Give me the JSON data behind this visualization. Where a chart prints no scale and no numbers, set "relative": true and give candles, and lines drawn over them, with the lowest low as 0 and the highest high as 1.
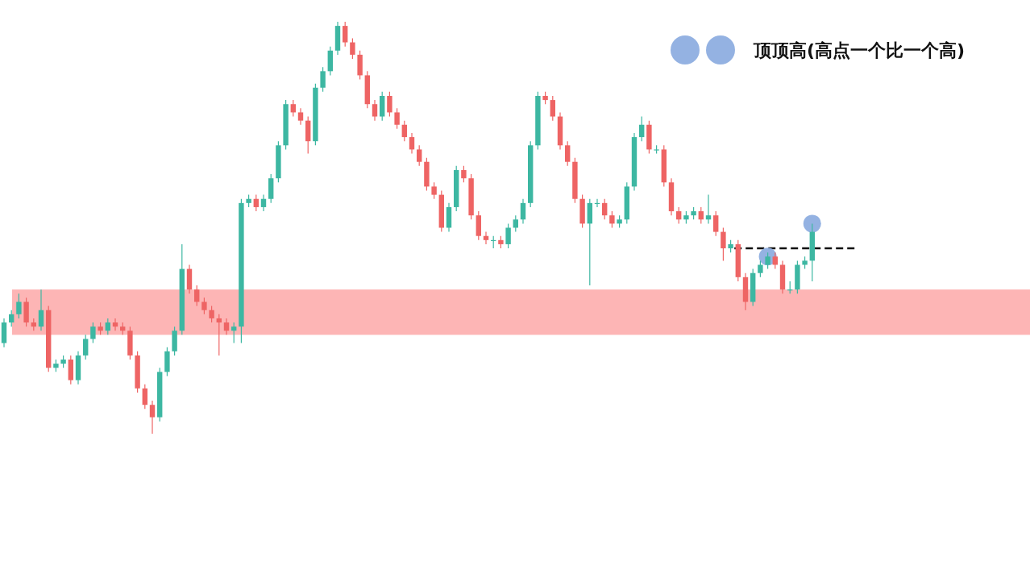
{
  "chart_data": {
    "type": "candlestick",
    "relative": true,
    "legend": "top right",
    "categories": [
      null,
      null,
      null,
      null,
      null,
      null,
      null,
      null,
      null,
      null,
      null,
      null,
      null,
      null,
      null,
      null,
      null,
      null,
      null,
      null,
      null,
      null,
      null,
      null,
      null,
      null,
      null,
      null,
      null,
      null,
      null,
      null,
      null,
      null,
      null,
      null,
      null,
      null,
      null,
      null,
      null,
      null,
      null,
      null,
      null,
      null,
      null,
      null,
      null,
      null,
      null,
      null,
      null,
      null,
      null,
      null,
      null,
      null,
      null,
      null,
      null,
      null,
      null,
      null,
      null,
      null,
      null,
      null,
      null,
      null,
      null,
      null,
      null,
      null,
      null,
      null,
      null,
      null,
      null,
      null,
      null,
      null,
      null,
      null,
      null,
      null,
      null,
      null,
      null,
      null,
      null,
      null,
      null,
      null,
      null,
      null,
      null,
      null,
      null,
      null,
      null,
      null,
      null,
      null,
      null,
      null,
      null,
      null,
      null,
      null
    ],
    "ohlc": [
      [
        0.22,
        0.28,
        0.21,
        0.27
      ],
      [
        0.27,
        0.3,
        0.26,
        0.29
      ],
      [
        0.29,
        0.34,
        0.28,
        0.32
      ],
      [
        0.32,
        0.33,
        0.26,
        0.27
      ],
      [
        0.27,
        0.28,
        0.25,
        0.26
      ],
      [
        0.26,
        0.35,
        0.25,
        0.3
      ],
      [
        0.3,
        0.31,
        0.15,
        0.16
      ],
      [
        0.16,
        0.18,
        0.15,
        0.17
      ],
      [
        0.17,
        0.19,
        0.16,
        0.18
      ],
      [
        0.18,
        0.19,
        0.12,
        0.13
      ],
      [
        0.13,
        0.2,
        0.12,
        0.19
      ],
      [
        0.19,
        0.24,
        0.18,
        0.23
      ],
      [
        0.23,
        0.27,
        0.22,
        0.26
      ],
      [
        0.26,
        0.27,
        0.24,
        0.25
      ],
      [
        0.25,
        0.28,
        0.24,
        0.27
      ],
      [
        0.27,
        0.28,
        0.25,
        0.26
      ],
      [
        0.26,
        0.27,
        0.24,
        0.25
      ],
      [
        0.25,
        0.26,
        0.18,
        0.19
      ],
      [
        0.19,
        0.2,
        0.1,
        0.11
      ],
      [
        0.11,
        0.12,
        0.06,
        0.07
      ],
      [
        0.07,
        0.08,
        0,
        0.04
      ],
      [
        0.04,
        0.16,
        0.03,
        0.15
      ],
      [
        0.15,
        0.21,
        0.14,
        0.2
      ],
      [
        0.2,
        0.26,
        0.19,
        0.25
      ],
      [
        0.25,
        0.46,
        0.24,
        0.4
      ],
      [
        0.4,
        0.41,
        0.34,
        0.35
      ],
      [
        0.35,
        0.36,
        0.31,
        0.32
      ],
      [
        0.32,
        0.33,
        0.29,
        0.3
      ],
      [
        0.3,
        0.31,
        0.27,
        0.28
      ],
      [
        0.28,
        0.29,
        0.19,
        0.27
      ],
      [
        0.27,
        0.28,
        0.24,
        0.25
      ],
      [
        0.25,
        0.27,
        0.22,
        0.26
      ],
      [
        0.26,
        0.57,
        0.22,
        0.56
      ],
      [
        0.56,
        0.58,
        0.55,
        0.57
      ],
      [
        0.57,
        0.58,
        0.54,
        0.55
      ],
      [
        0.55,
        0.58,
        0.54,
        0.57
      ],
      [
        0.57,
        0.63,
        0.56,
        0.62
      ],
      [
        0.62,
        0.71,
        0.61,
        0.7
      ],
      [
        0.7,
        0.81,
        0.69,
        0.8
      ],
      [
        0.8,
        0.81,
        0.77,
        0.78
      ],
      [
        0.78,
        0.79,
        0.75,
        0.76
      ],
      [
        0.76,
        0.77,
        0.68,
        0.71
      ],
      [
        0.71,
        0.85,
        0.7,
        0.84
      ],
      [
        0.84,
        0.89,
        0.83,
        0.88
      ],
      [
        0.88,
        0.94,
        0.87,
        0.93
      ],
      [
        0.93,
        1,
        0.92,
        0.99
      ],
      [
        0.99,
        1,
        0.94,
        0.95
      ],
      [
        0.95,
        0.96,
        0.91,
        0.92
      ],
      [
        0.92,
        0.93,
        0.86,
        0.87
      ],
      [
        0.87,
        0.88,
        0.79,
        0.8
      ],
      [
        0.8,
        0.81,
        0.76,
        0.77
      ],
      [
        0.77,
        0.83,
        0.76,
        0.82
      ],
      [
        0.82,
        0.83,
        0.77,
        0.78
      ],
      [
        0.78,
        0.79,
        0.74,
        0.75
      ],
      [
        0.75,
        0.76,
        0.71,
        0.72
      ],
      [
        0.72,
        0.73,
        0.68,
        0.69
      ],
      [
        0.69,
        0.7,
        0.65,
        0.66
      ],
      [
        0.66,
        0.67,
        0.59,
        0.6
      ],
      [
        0.6,
        0.61,
        0.57,
        0.58
      ],
      [
        0.58,
        0.59,
        0.49,
        0.5
      ],
      [
        0.5,
        0.56,
        0.49,
        0.55
      ],
      [
        0.55,
        0.65,
        0.54,
        0.64
      ],
      [
        0.64,
        0.65,
        0.61,
        0.62
      ],
      [
        0.62,
        0.63,
        0.52,
        0.53
      ],
      [
        0.53,
        0.54,
        0.47,
        0.48
      ],
      [
        0.48,
        0.49,
        0.46,
        0.47
      ],
      [
        0.47,
        0.48,
        0.45,
        0.47
      ],
      [
        0.47,
        0.48,
        0.45,
        0.46
      ],
      [
        0.46,
        0.51,
        0.45,
        0.5
      ],
      [
        0.5,
        0.53,
        0.49,
        0.52
      ],
      [
        0.52,
        0.57,
        0.51,
        0.56
      ],
      [
        0.56,
        0.71,
        0.55,
        0.7
      ],
      [
        0.7,
        0.83,
        0.69,
        0.82
      ],
      [
        0.82,
        0.83,
        0.8,
        0.81
      ],
      [
        0.81,
        0.82,
        0.76,
        0.77
      ],
      [
        0.77,
        0.78,
        0.69,
        0.7
      ],
      [
        0.7,
        0.71,
        0.65,
        0.66
      ],
      [
        0.66,
        0.67,
        0.56,
        0.57
      ],
      [
        0.57,
        0.58,
        0.5,
        0.51
      ],
      [
        0.51,
        0.57,
        0.36,
        0.56
      ],
      [
        0.56,
        0.57,
        0.55,
        0.56
      ],
      [
        0.56,
        0.57,
        0.52,
        0.53
      ],
      [
        0.53,
        0.54,
        0.5,
        0.51
      ],
      [
        0.51,
        0.53,
        0.5,
        0.52
      ],
      [
        0.52,
        0.61,
        0.51,
        0.6
      ],
      [
        0.6,
        0.73,
        0.59,
        0.72
      ],
      [
        0.72,
        0.77,
        0.71,
        0.75
      ],
      [
        0.75,
        0.76,
        0.68,
        0.69
      ],
      [
        0.69,
        0.7,
        0.68,
        0.69
      ],
      [
        0.69,
        0.7,
        0.6,
        0.61
      ],
      [
        0.61,
        0.62,
        0.53,
        0.54
      ],
      [
        0.54,
        0.55,
        0.51,
        0.52
      ],
      [
        0.52,
        0.54,
        0.51,
        0.53
      ],
      [
        0.53,
        0.55,
        0.52,
        0.54
      ],
      [
        0.54,
        0.55,
        0.51,
        0.52
      ],
      [
        0.52,
        0.58,
        0.51,
        0.53
      ],
      [
        0.53,
        0.54,
        0.48,
        0.49
      ],
      [
        0.49,
        0.5,
        0.42,
        0.45
      ],
      [
        0.45,
        0.47,
        0.44,
        0.46
      ],
      [
        0.46,
        0.47,
        0.37,
        0.38
      ],
      [
        0.38,
        0.39,
        0.3,
        0.32
      ],
      [
        0.32,
        0.4,
        0.31,
        0.39
      ],
      [
        0.39,
        0.42,
        0.38,
        0.41
      ],
      [
        0.41,
        0.44,
        0.4,
        0.43
      ],
      [
        0.43,
        0.44,
        0.4,
        0.41
      ],
      [
        0.41,
        0.42,
        0.34,
        0.35
      ],
      [
        0.35,
        0.37,
        0.34,
        0.35
      ],
      [
        0.35,
        0.42,
        0.34,
        0.41
      ],
      [
        0.41,
        0.43,
        0.4,
        0.42
      ],
      [
        0.42,
        0.51,
        0.37,
        0.49
      ]
    ],
    "series": [
      {
        "name": "顶顶高(高点一个比一个高)",
        "type": "scatter",
        "marker": "circle",
        "color": "#8eaee0",
        "values": [
          null,
          null,
          null,
          null,
          null,
          null,
          null,
          null,
          null,
          null,
          null,
          null,
          null,
          null,
          null,
          null,
          null,
          null,
          null,
          null,
          null,
          null,
          null,
          null,
          null,
          null,
          null,
          null,
          null,
          null,
          null,
          null,
          null,
          null,
          null,
          null,
          null,
          null,
          null,
          null,
          null,
          null,
          null,
          null,
          null,
          null,
          null,
          null,
          null,
          null,
          null,
          null,
          null,
          null,
          null,
          null,
          null,
          null,
          null,
          null,
          null,
          null,
          null,
          null,
          null,
          null,
          null,
          null,
          null,
          null,
          null,
          null,
          null,
          null,
          null,
          null,
          null,
          null,
          null,
          null,
          null,
          null,
          null,
          null,
          null,
          null,
          null,
          null,
          null,
          null,
          null,
          null,
          null,
          null,
          null,
          null,
          null,
          null,
          null,
          null,
          null,
          null,
          null,
          0.43,
          null,
          null,
          null,
          null,
          null,
          0.51
        ]
      }
    ],
    "bands": [
      {
        "axis": "y",
        "from": 0.24,
        "to": 0.35,
        "color": "#fdb5b5"
      }
    ],
    "ref_lines": [
      {
        "axis": "y",
        "value": 0.45,
        "color": "#111111",
        "line_style": "dashed"
      }
    ]
  }
}
